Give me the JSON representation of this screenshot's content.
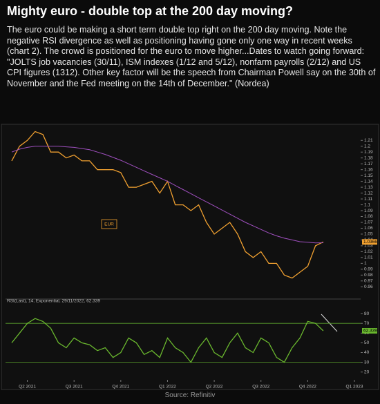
{
  "article": {
    "title": "Mighty euro - double top at the 200 day moving?",
    "body": "The euro could be making a short term double top right on the 200 day moving. Note the negative RSI divergence as well as positioning having gone only one way in recent weeks (chart 2). The crowd is positioned for the euro to move higher...Dates to watch going forward: \"JOLTS job vacancies (30/11), ISM indexes (1/12 and 5/12), nonfarm payrolls (2/12) and US CPI figures (1312). Other key factor will be the speech from Chairman Powell say on the 30th of November and the Fed meeting on the 14th of December.\" (Nordea)",
    "source": "Source: Refinitiv"
  },
  "chart_data": [
    {
      "type": "line",
      "legend_label": "EUR",
      "x": [
        0,
        0.5,
        1,
        1.5,
        2,
        2.5,
        3,
        3.5,
        4,
        4.5,
        5,
        5.5,
        6,
        6.5,
        7,
        7.5,
        8,
        8.5,
        9,
        9.5,
        10,
        10.5,
        11,
        11.5,
        12,
        12.5,
        13,
        13.5,
        14,
        14.5,
        15,
        15.5,
        16,
        16.5,
        17,
        17.5,
        18,
        18.5,
        19,
        19.5,
        20
      ],
      "xlim": [
        -0.4,
        22.4
      ],
      "ylim": [
        0.945,
        1.228
      ],
      "yticks": [
        0.96,
        0.97,
        0.98,
        0.99,
        1,
        1.01,
        1.02,
        1.03,
        1.04,
        1.05,
        1.06,
        1.07,
        1.08,
        1.09,
        1.1,
        1.11,
        1.12,
        1.13,
        1.14,
        1.15,
        1.16,
        1.17,
        1.18,
        1.19,
        1.2,
        1.21
      ],
      "series": [
        {
          "name": "EUR",
          "color": "#f0a030",
          "values": [
            1.175,
            1.2,
            1.21,
            1.225,
            1.22,
            1.19,
            1.19,
            1.18,
            1.185,
            1.175,
            1.175,
            1.16,
            1.16,
            1.16,
            1.155,
            1.13,
            1.13,
            1.135,
            1.14,
            1.12,
            1.14,
            1.1,
            1.1,
            1.09,
            1.1,
            1.07,
            1.05,
            1.06,
            1.07,
            1.05,
            1.02,
            1.01,
            1.02,
            1,
            1,
            0.98,
            0.975,
            0.985,
            0.995,
            1.03,
            1.0366
          ]
        },
        {
          "color": "#a050c0",
          "values": [
            1.19,
            1.195,
            1.198,
            1.2,
            1.2,
            1.2,
            1.2,
            1.199,
            1.198,
            1.196,
            1.194,
            1.19,
            1.186,
            1.181,
            1.176,
            1.17,
            1.164,
            1.158,
            1.152,
            1.146,
            1.14,
            1.133,
            1.126,
            1.119,
            1.112,
            1.105,
            1.098,
            1.091,
            1.084,
            1.077,
            1.07,
            1.064,
            1.058,
            1.052,
            1.047,
            1.043,
            1.04,
            1.037,
            1.036,
            1.035,
            1.0352
          ]
        }
      ],
      "annotations": [
        {
          "text": "1.0366",
          "y": 1.0366,
          "color": "#f0a030"
        }
      ]
    },
    {
      "type": "line",
      "title": "RSI(Last), 14, Exponential, 29/11/2022, 62.339",
      "x": [
        0,
        0.5,
        1,
        1.5,
        2,
        2.5,
        3,
        3.5,
        4,
        4.5,
        5,
        5.5,
        6,
        6.5,
        7,
        7.5,
        8,
        8.5,
        9,
        9.5,
        10,
        10.5,
        11,
        11.5,
        12,
        12.5,
        13,
        13.5,
        14,
        14.5,
        15,
        15.5,
        16,
        16.5,
        17,
        17.5,
        18,
        18.5,
        19,
        19.5,
        20
      ],
      "xlim": [
        -0.4,
        22.4
      ],
      "ylim": [
        12,
        90
      ],
      "yticks": [
        20,
        30,
        40,
        50,
        60,
        70,
        80
      ],
      "xticks": [
        {
          "value": 1,
          "label": "Q2 2021"
        },
        {
          "value": 4,
          "label": "Q3 2021"
        },
        {
          "value": 7,
          "label": "Q4 2021"
        },
        {
          "value": 10,
          "label": "Q1 2022"
        },
        {
          "value": 13,
          "label": "Q2 2022"
        },
        {
          "value": 16,
          "label": "Q3 2022"
        },
        {
          "value": 19,
          "label": "Q4 2022"
        },
        {
          "value": 22,
          "label": "Q1 2023"
        }
      ],
      "hlines": [
        70,
        30
      ],
      "hline_color": "#5aa02c",
      "series": [
        {
          "color": "#6ab82e",
          "values": [
            50,
            60,
            70,
            75,
            72,
            65,
            50,
            45,
            55,
            50,
            48,
            42,
            45,
            35,
            40,
            55,
            50,
            38,
            42,
            35,
            55,
            45,
            40,
            30,
            45,
            55,
            40,
            35,
            50,
            60,
            45,
            40,
            55,
            50,
            35,
            30,
            45,
            55,
            72,
            70,
            62.339
          ]
        }
      ],
      "annotations": [
        {
          "text": "62.339",
          "y": 62.339,
          "color": "#6ab82e"
        }
      ]
    }
  ]
}
